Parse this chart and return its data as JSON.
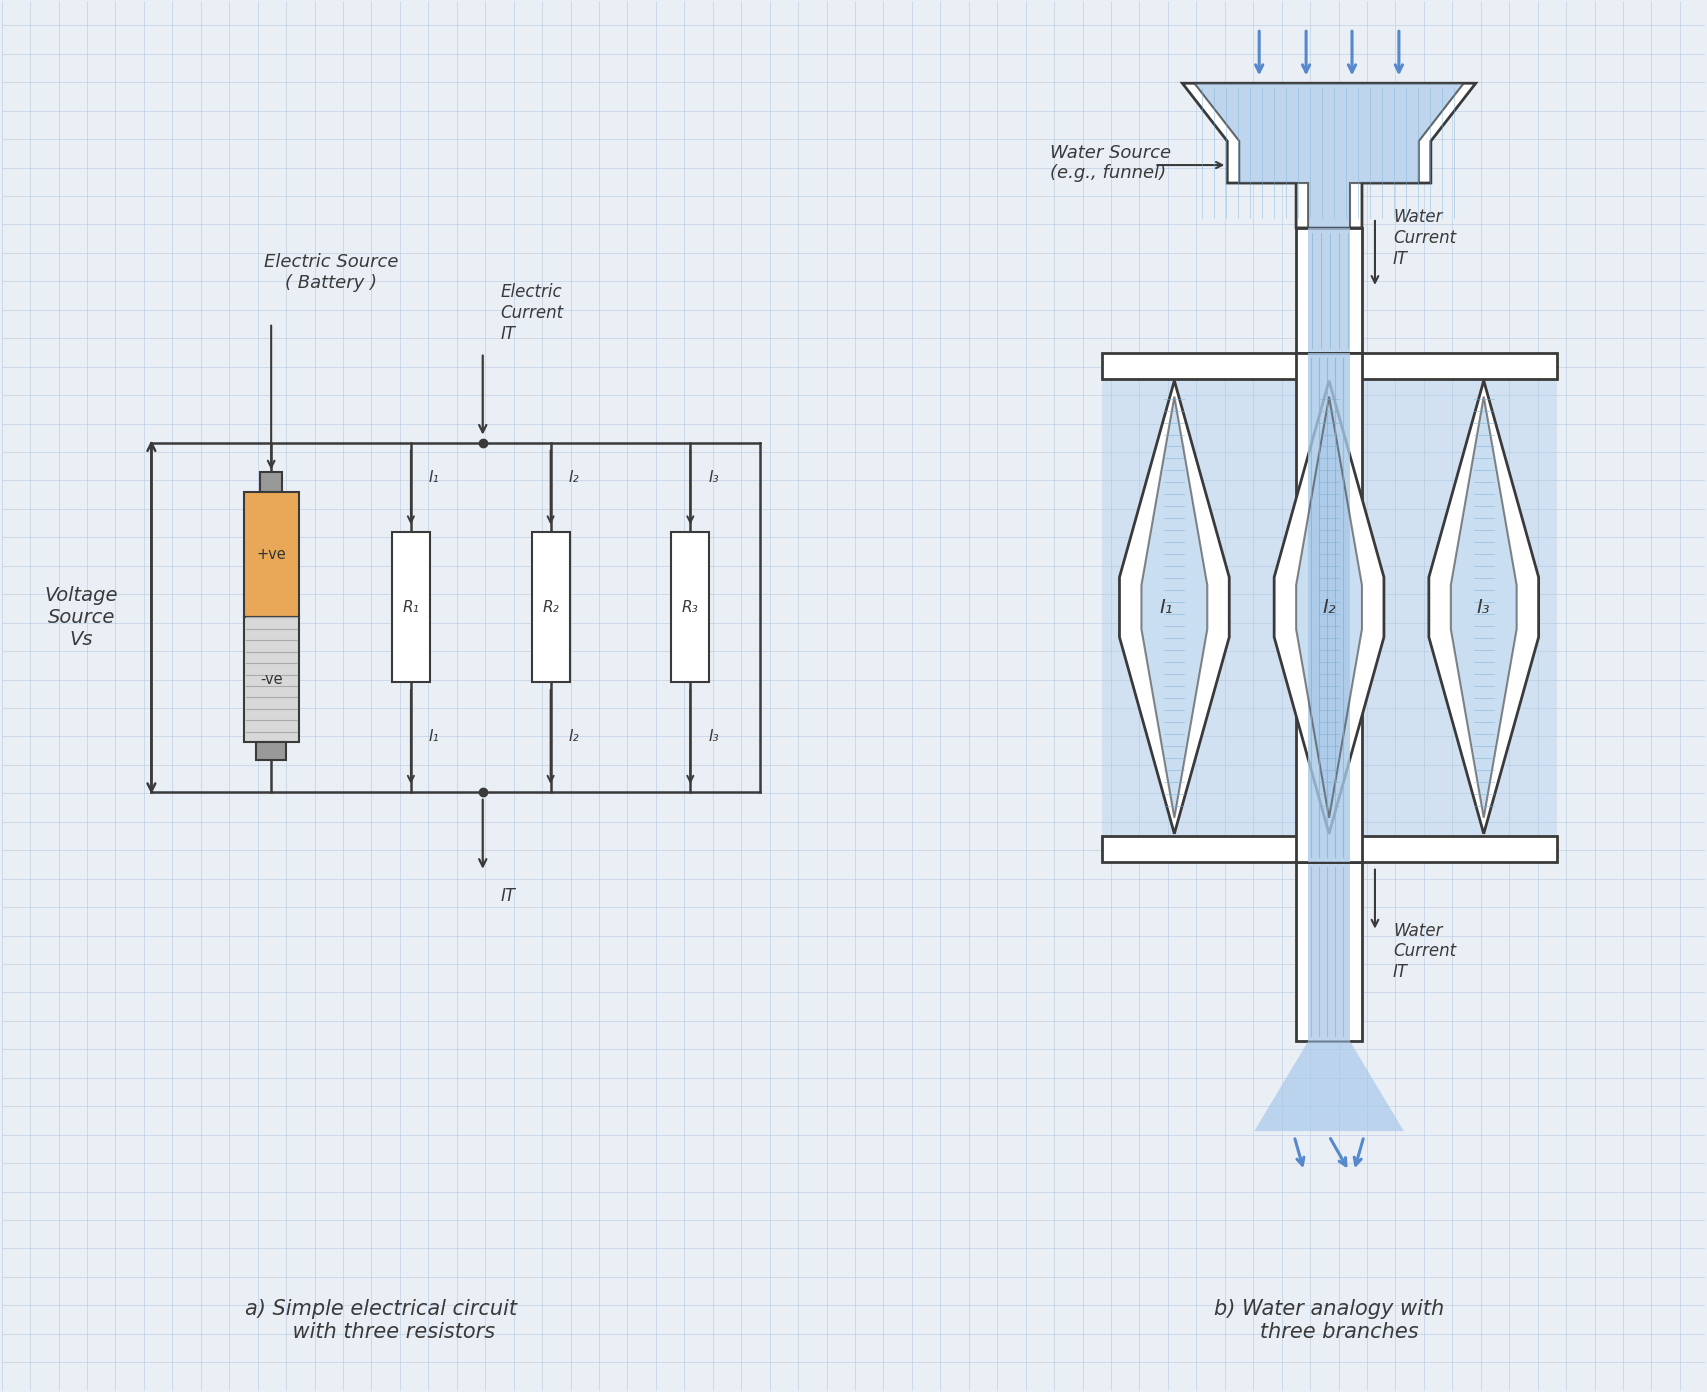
{
  "bg_color": "#eaeff6",
  "grid_color": "#b5c8e0",
  "line_color": "#3a3a3a",
  "pencil_color": "#3a3a3a",
  "title_a": "a) Simple electrical circuit\n    with three resistors",
  "title_b": "b) Water analogy with\n   three branches",
  "label_electric_source": "Electric Source\n( Battery )",
  "label_water_source": "Water Source\n(e.g., funnel)",
  "label_electric_current": "Electric\nCurrent\nIT",
  "label_water_current_top": "Water\nCurrent\nIT",
  "label_water_current_bot": "Water\nCurrent\nIT",
  "label_voltage": "Voltage\nSource\nVs",
  "battery_positive_color": "#e8a857",
  "water_color": "#a8c8e8",
  "water_dark": "#7ab0d4",
  "arrow_blue": "#5588cc"
}
